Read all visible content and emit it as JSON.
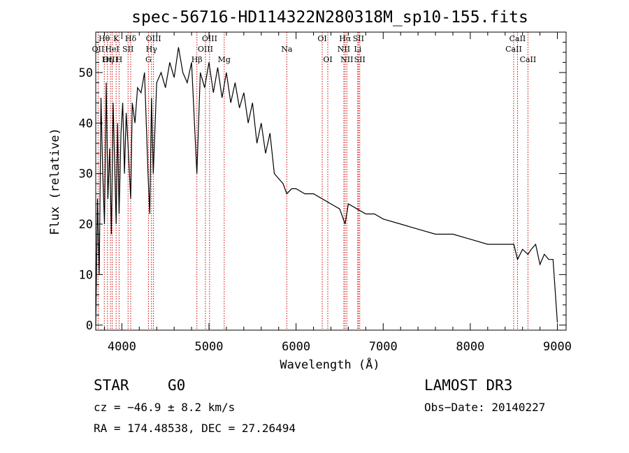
{
  "chart_data": {
    "type": "line",
    "title": "spec-56716-HD114322N280318M_sp10-155.fits",
    "xlabel": "Wavelength (Å)",
    "ylabel": "Flux (relative)",
    "xlim": [
      3700,
      9100
    ],
    "ylim": [
      -1,
      58
    ],
    "xticks": [
      4000,
      5000,
      6000,
      7000,
      8000,
      9000
    ],
    "yticks": [
      0,
      10,
      20,
      30,
      40,
      50
    ],
    "series": [
      {
        "name": "flux",
        "x": [
          3700,
          3720,
          3740,
          3760,
          3780,
          3800,
          3820,
          3840,
          3860,
          3880,
          3900,
          3920,
          3934,
          3950,
          3968,
          3990,
          4010,
          4030,
          4050,
          4070,
          4101,
          4120,
          4150,
          4180,
          4220,
          4260,
          4300,
          4320,
          4340,
          4360,
          4400,
          4450,
          4500,
          4550,
          4600,
          4650,
          4700,
          4750,
          4800,
          4861,
          4900,
          4950,
          5000,
          5050,
          5100,
          5150,
          5200,
          5250,
          5300,
          5350,
          5400,
          5450,
          5500,
          5550,
          5600,
          5650,
          5700,
          5750,
          5800,
          5850,
          5893,
          5950,
          6000,
          6100,
          6200,
          6300,
          6400,
          6500,
          6563,
          6600,
          6700,
          6800,
          6900,
          7000,
          7200,
          7400,
          7600,
          7800,
          8000,
          8200,
          8400,
          8500,
          8542,
          8600,
          8662,
          8700,
          8750,
          8800,
          8850,
          8900,
          8950,
          9000
        ],
        "y": [
          0,
          25,
          10,
          45,
          30,
          20,
          48,
          25,
          35,
          18,
          44,
          30,
          20,
          40,
          22,
          38,
          44,
          30,
          42,
          36,
          25,
          44,
          40,
          47,
          46,
          50,
          30,
          22,
          45,
          30,
          48,
          50,
          47,
          52,
          49,
          55,
          50,
          48,
          52,
          30,
          50,
          47,
          52,
          46,
          51,
          45,
          50,
          44,
          48,
          43,
          46,
          40,
          44,
          36,
          40,
          34,
          38,
          30,
          29,
          28,
          26,
          27,
          27,
          26,
          26,
          25,
          24,
          23,
          20,
          24,
          23,
          22,
          22,
          21,
          20,
          19,
          18,
          18,
          17,
          16,
          16,
          16,
          13,
          15,
          14,
          15,
          16,
          12,
          14,
          13,
          13,
          0.5
        ]
      }
    ],
    "lines": [
      {
        "label": "Hθ",
        "x": 3798,
        "row": 0
      },
      {
        "label": "OII",
        "x": 3727,
        "row": 1
      },
      {
        "label": "OIII",
        "x": 3869,
        "row": 2
      },
      {
        "label": "Hη",
        "x": 3835,
        "row": 2
      },
      {
        "label": "K",
        "x": 3934,
        "row": 0
      },
      {
        "label": "HeI",
        "x": 3889,
        "row": 1
      },
      {
        "label": "H",
        "x": 3968,
        "row": 2
      },
      {
        "label": "Hδ",
        "x": 4101,
        "row": 0
      },
      {
        "label": "SII",
        "x": 4071,
        "row": 1
      },
      {
        "label": "OIII",
        "x": 4363,
        "row": 0
      },
      {
        "label": "Hγ",
        "x": 4340,
        "row": 1
      },
      {
        "label": "G",
        "x": 4305,
        "row": 2
      },
      {
        "label": "OIII",
        "x": 5007,
        "row": 0
      },
      {
        "label": "OIII",
        "x": 4959,
        "row": 1
      },
      {
        "label": "Hβ",
        "x": 4861,
        "row": 2
      },
      {
        "label": "Mg",
        "x": 5175,
        "row": 2
      },
      {
        "label": "Na",
        "x": 5893,
        "row": 1
      },
      {
        "label": "OI",
        "x": 6300,
        "row": 0
      },
      {
        "label": "OI",
        "x": 6364,
        "row": 2
      },
      {
        "label": "Hα",
        "x": 6563,
        "row": 0
      },
      {
        "label": "NII",
        "x": 6548,
        "row": 1
      },
      {
        "label": "NII",
        "x": 6583,
        "row": 2
      },
      {
        "label": "SII",
        "x": 6716,
        "row": 0
      },
      {
        "label": "Li",
        "x": 6708,
        "row": 1
      },
      {
        "label": "SII",
        "x": 6731,
        "row": 2
      },
      {
        "label": "CaII",
        "x": 8542,
        "row": 0
      },
      {
        "label": "CaII",
        "x": 8498,
        "row": 1
      },
      {
        "label": "CaII",
        "x": 8662,
        "row": 2
      }
    ]
  },
  "info": {
    "object_type": "STAR",
    "subclass": "G0",
    "cz": "cz = −46.9 ± 8.2 km/s",
    "survey": "LAMOST DR3",
    "obs_date": "Obs−Date: 20140227",
    "radec": "RA = 174.48538, DEC =  27.26494"
  },
  "colors": {
    "line": "#000000",
    "marker": "#cc0000",
    "background": "#ffffff"
  }
}
